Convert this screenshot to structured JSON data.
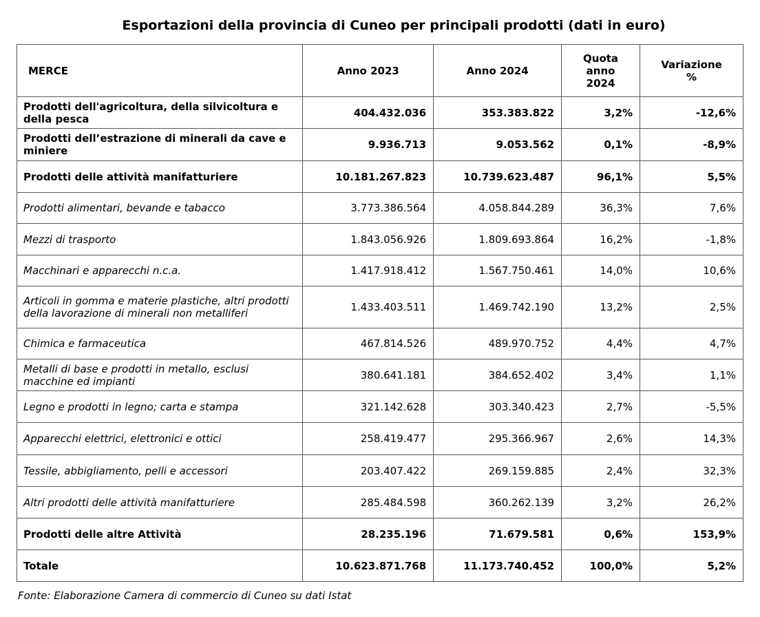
{
  "title": "Esportazioni della provincia di Cuneo per principali prodotti (dati in euro)",
  "headers": {
    "merce": "MERCE",
    "anno2023": "Anno 2023",
    "anno2024": "Anno 2024",
    "quota": "Quota anno 2024",
    "variazione": "Variazione %"
  },
  "rows": [
    {
      "label": "Prodotti dell'agricoltura, della silvicoltura e della pesca",
      "y2023": "404.432.036",
      "y2024": "353.383.822",
      "quota": "3,2%",
      "var": "-12,6%",
      "style": "bold"
    },
    {
      "label": "Prodotti dell’estrazione di minerali da cave e miniere",
      "y2023": "9.936.713",
      "y2024": "9.053.562",
      "quota": "0,1%",
      "var": "-8,9%",
      "style": "bold"
    },
    {
      "label": "Prodotti delle attività manifatturiere",
      "y2023": "10.181.267.823",
      "y2024": "10.739.623.487",
      "quota": "96,1%",
      "var": "5,5%",
      "style": "bold"
    },
    {
      "label": "Prodotti alimentari, bevande e tabacco",
      "y2023": "3.773.386.564",
      "y2024": "4.058.844.289",
      "quota": "36,3%",
      "var": "7,6%",
      "style": "italic"
    },
    {
      "label": "Mezzi di trasporto",
      "y2023": "1.843.056.926",
      "y2024": "1.809.693.864",
      "quota": "16,2%",
      "var": "-1,8%",
      "style": "italic"
    },
    {
      "label": "Macchinari e apparecchi n.c.a.",
      "y2023": "1.417.918.412",
      "y2024": "1.567.750.461",
      "quota": "14,0%",
      "var": "10,6%",
      "style": "italic"
    },
    {
      "label": "Articoli in gomma e materie plastiche, altri prodotti della lavorazione di minerali non metalliferi",
      "y2023": "1.433.403.511",
      "y2024": "1.469.742.190",
      "quota": "13,2%",
      "var": "2,5%",
      "style": "italic"
    },
    {
      "label": "Chimica e farmaceutica",
      "y2023": "467.814.526",
      "y2024": "489.970.752",
      "quota": "4,4%",
      "var": "4,7%",
      "style": "italic"
    },
    {
      "label": "Metalli di base e prodotti in metallo, esclusi macchine ed impianti",
      "y2023": "380.641.181",
      "y2024": "384.652.402",
      "quota": "3,4%",
      "var": "1,1%",
      "style": "italic"
    },
    {
      "label": "Legno e prodotti in legno; carta e stampa",
      "y2023": "321.142.628",
      "y2024": "303.340.423",
      "quota": "2,7%",
      "var": "-5,5%",
      "style": "italic"
    },
    {
      "label": "Apparecchi elettrici, elettronici e ottici",
      "y2023": "258.419.477",
      "y2024": "295.366.967",
      "quota": "2,6%",
      "var": "14,3%",
      "style": "italic"
    },
    {
      "label": "Tessile, abbigliamento, pelli e accessori",
      "y2023": "203.407.422",
      "y2024": "269.159.885",
      "quota": "2,4%",
      "var": "32,3%",
      "style": "italic"
    },
    {
      "label": "Altri prodotti delle attività manifatturiere",
      "y2023": "285.484.598",
      "y2024": "360.262.139",
      "quota": "3,2%",
      "var": "26,2%",
      "style": "italic"
    },
    {
      "label": "Prodotti delle altre Attività",
      "y2023": "28.235.196",
      "y2024": "71.679.581",
      "quota": "0,6%",
      "var": "153,9%",
      "style": "bold"
    },
    {
      "label": "Totale",
      "y2023": "10.623.871.768",
      "y2024": "11.173.740.452",
      "quota": "100,0%",
      "var": "5,2%",
      "style": "bold"
    }
  ],
  "source": "Fonte: Elaborazione Camera di commercio di Cuneo su dati Istat"
}
